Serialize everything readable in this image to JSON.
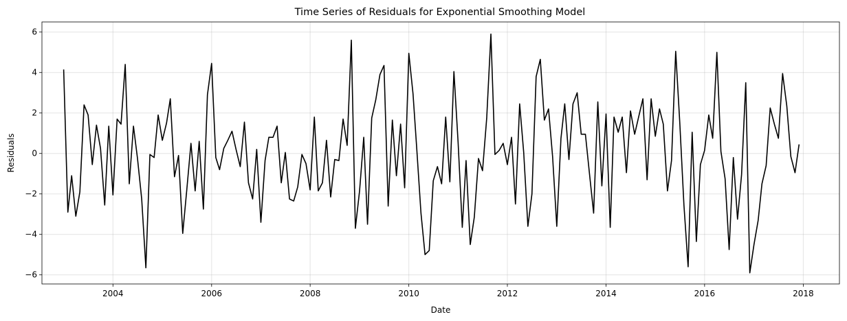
{
  "chart_data": {
    "type": "line",
    "title": "Time Series of Residuals for Exponential Smoothing Model",
    "xlabel": "Date",
    "ylabel": "Residuals",
    "x_tick_labels": [
      "2004",
      "2006",
      "2008",
      "2010",
      "2012",
      "2014",
      "2016",
      "2018"
    ],
    "y_tick_labels": [
      "−6",
      "−4",
      "−2",
      "0",
      "2",
      "4",
      "6"
    ],
    "y_ticks": [
      -6,
      -4,
      -2,
      0,
      2,
      4,
      6
    ],
    "x_ticks": [
      "2004-01-01",
      "2006-01-01",
      "2008-01-01",
      "2010-01-01",
      "2012-01-01",
      "2014-01-01",
      "2016-01-01",
      "2018-01-01"
    ],
    "xlim": [
      "2002-07-24",
      "2018-09-26"
    ],
    "ylim": [
      -6.45,
      6.5
    ],
    "grid": true,
    "line_color": "#000000",
    "series": [
      {
        "x_start": "2003-01",
        "x_end": "2018-01",
        "frequency": "monthly",
        "values": [
          4.15,
          -2.9,
          -1.1,
          -3.1,
          -1.9,
          2.4,
          1.9,
          -0.55,
          1.4,
          0.25,
          -2.55,
          1.35,
          -2.05,
          1.7,
          1.45,
          4.4,
          -1.5,
          1.35,
          -0.25,
          -2.25,
          -5.65,
          -0.05,
          -0.2,
          1.9,
          0.65,
          1.5,
          2.7,
          -1.15,
          -0.1,
          -3.95,
          -1.8,
          0.5,
          -1.85,
          0.6,
          -2.75,
          2.9,
          4.45,
          -0.2,
          -0.8,
          0.25,
          0.65,
          1.1,
          0.2,
          -0.65,
          1.55,
          -1.45,
          -2.25,
          0.2,
          -3.4,
          -0.35,
          0.8,
          0.8,
          1.35,
          -1.45,
          0.05,
          -2.25,
          -2.35,
          -1.65,
          -0.05,
          -0.5,
          -1.8,
          1.8,
          -1.85,
          -1.45,
          0.65,
          -2.15,
          -0.3,
          -0.35,
          1.7,
          0.4,
          5.6,
          -3.7,
          -1.85,
          0.8,
          -3.5,
          1.75,
          2.65,
          3.9,
          4.35,
          -2.6,
          1.65,
          -1.1,
          1.45,
          -1.7,
          4.95,
          2.95,
          0.2,
          -2.95,
          -5.0,
          -4.8,
          -1.35,
          -0.65,
          -1.5,
          1.8,
          -1.4,
          4.05,
          0.55,
          -3.65,
          -0.35,
          -4.5,
          -3.15,
          -0.25,
          -0.85,
          1.75,
          5.9,
          -0.05,
          0.15,
          0.5,
          -0.55,
          0.8,
          -2.5,
          2.45,
          0.05,
          -3.6,
          -2.0,
          3.8,
          4.65,
          1.65,
          2.2,
          -0.15,
          -3.6,
          0.75,
          2.45,
          -0.3,
          2.45,
          3.0,
          0.95,
          0.95,
          -1.05,
          -2.95,
          2.55,
          -1.6,
          1.95,
          -3.65,
          1.8,
          1.05,
          1.8,
          -0.95,
          2.1,
          0.95,
          1.85,
          2.7,
          -1.3,
          2.7,
          0.85,
          2.2,
          1.45,
          -1.85,
          -0.35,
          5.05,
          1.55,
          -2.55,
          -5.6,
          1.05,
          -4.35,
          -0.55,
          0.15,
          1.9,
          0.75,
          5.0,
          0.1,
          -1.25,
          -4.75,
          -0.2,
          -3.25,
          -1.05,
          3.5,
          -5.9,
          -4.5,
          -3.3,
          -1.5,
          -0.6,
          2.25,
          1.45,
          0.75,
          3.95,
          2.35,
          -0.15,
          -0.95,
          0.45
        ]
      }
    ]
  }
}
